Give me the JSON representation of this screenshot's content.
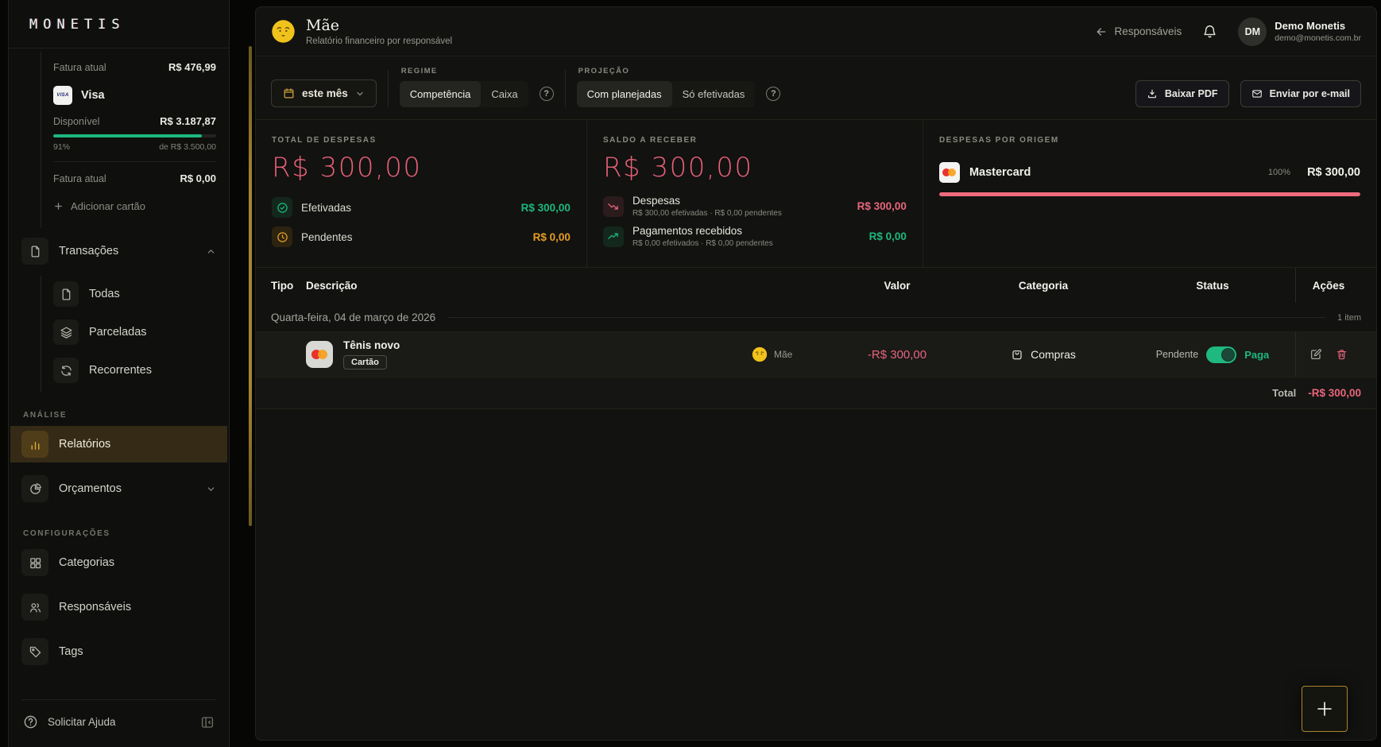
{
  "colors": {
    "accent_gold": "#c79a34",
    "red": "#e7657b",
    "green": "#1db87e",
    "amber": "#e69d22"
  },
  "sidebar": {
    "logo": "MONETIS",
    "cards": {
      "prev_invoice": {
        "label": "Fatura atual",
        "value": "R$ 476,99"
      },
      "visa": {
        "name": "Visa",
        "brand_mark": "VISA",
        "available_label": "Disponível",
        "available_value": "R$ 3.187,87",
        "percent_label": "91%",
        "percent": 91,
        "limit_label": "de R$ 3.500,00",
        "invoice_label": "Fatura atual",
        "invoice_value": "R$ 0,00"
      },
      "add_card_label": "Adicionar cartão"
    },
    "nav": {
      "transacoes": "Transações",
      "todas": "Todas",
      "parceladas": "Parceladas",
      "recorrentes": "Recorrentes",
      "analise_section": "ANÁLISE",
      "relatorios": "Relatórios",
      "orcamentos": "Orçamentos",
      "config_section": "CONFIGURAÇÕES",
      "categorias": "Categorias",
      "responsaveis": "Responsáveis",
      "tags": "Tags",
      "help": "Solicitar Ajuda"
    }
  },
  "header": {
    "title": "Mãe",
    "subtitle": "Relatório financeiro por responsável",
    "back_label": "Responsáveis",
    "user": {
      "initials": "DM",
      "name": "Demo Monetis",
      "email": "demo@monetis.com.br"
    }
  },
  "filters": {
    "period": "este mês",
    "regime": {
      "label": "REGIME",
      "options": [
        "Competência",
        "Caixa"
      ],
      "selected": "Competência"
    },
    "projecao": {
      "label": "PROJEÇÃO",
      "options": [
        "Com planejadas",
        "Só efetivadas"
      ],
      "selected": "Com planejadas"
    },
    "help_glyph": "?",
    "download_label": "Baixar PDF",
    "email_label": "Enviar por e-mail"
  },
  "summary": {
    "despesas": {
      "label": "TOTAL DE DESPESAS",
      "total": "R$ 300,00",
      "efetivadas": {
        "label": "Efetivadas",
        "value": "R$ 300,00"
      },
      "pendentes": {
        "label": "Pendentes",
        "value": "R$ 0,00"
      }
    },
    "saldo": {
      "label": "SALDO A RECEBER",
      "total": "R$ 300,00",
      "despesas": {
        "title": "Despesas",
        "sub": "R$ 300,00 efetivadas · R$ 0,00 pendentes",
        "value": "R$ 300,00"
      },
      "recebidos": {
        "title": "Pagamentos recebidos",
        "sub": "R$ 0,00 efetivados · R$ 0,00 pendentes",
        "value": "R$ 0,00"
      }
    },
    "origem": {
      "label": "DESPESAS POR ORIGEM",
      "item": {
        "name": "Mastercard",
        "percent_label": "100%",
        "percent": 100,
        "value": "R$ 300,00"
      }
    }
  },
  "table": {
    "columns": {
      "tipo": "Tipo",
      "descricao": "Descrição",
      "valor": "Valor",
      "categoria": "Categoria",
      "status": "Status",
      "acoes": "Ações"
    },
    "group": {
      "date": "Quarta-feira, 04 de março de 2026",
      "count": "1 item"
    },
    "row": {
      "description": "Tênis novo",
      "badge": "Cartão",
      "responsible": "Mãe",
      "value": "-R$ 300,00",
      "category": "Compras",
      "status_off_label": "Pendente",
      "status_on_label": "Paga"
    },
    "total": {
      "label": "Total",
      "value": "-R$ 300,00"
    }
  }
}
